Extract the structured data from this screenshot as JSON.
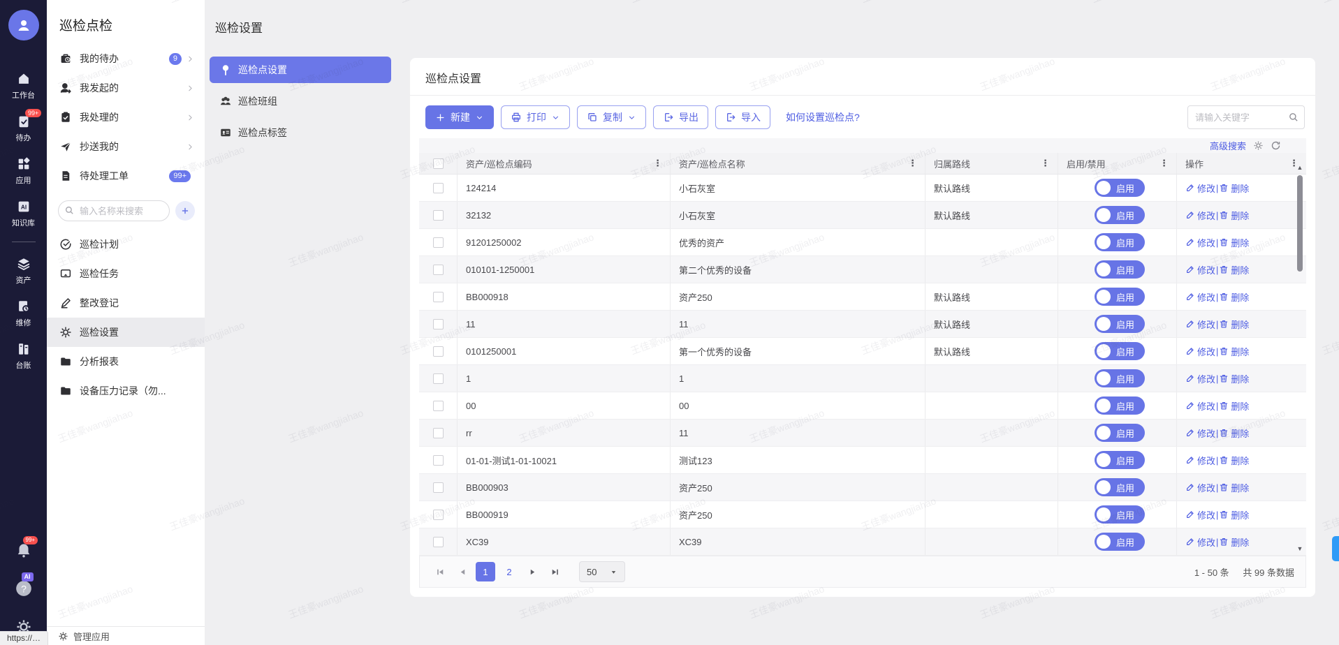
{
  "watermark": "王佳豪wangjiahao",
  "rail": {
    "items": [
      {
        "icon": "home",
        "label": "工作台"
      },
      {
        "icon": "tasks",
        "label": "待办",
        "badge": "99+"
      },
      {
        "icon": "grid",
        "label": "应用"
      },
      {
        "icon": "book",
        "label": "知识库"
      },
      {
        "divider": true
      },
      {
        "icon": "layers",
        "label": "资产"
      },
      {
        "icon": "repairbook",
        "label": "维修"
      },
      {
        "icon": "cabinet",
        "label": "台账"
      }
    ],
    "bell_badge": "99+",
    "ai_badge": "AI"
  },
  "sidebar": {
    "title": "巡检点检",
    "top_items": [
      {
        "icon": "briefcase",
        "label": "我的待办",
        "badge": "9",
        "chevron": true
      },
      {
        "icon": "useradd",
        "label": "我发起的",
        "chevron": true
      },
      {
        "icon": "clipcheck",
        "label": "我处理的",
        "chevron": true
      },
      {
        "icon": "send",
        "label": "抄送我的",
        "chevron": true
      },
      {
        "icon": "doc",
        "label": "待处理工单",
        "badge": "99+"
      }
    ],
    "search_placeholder": "输入名称来搜索",
    "menu_items": [
      {
        "icon": "checkcircle",
        "label": "巡检计划"
      },
      {
        "icon": "cast",
        "label": "巡检任务"
      },
      {
        "icon": "pen",
        "label": "整改登记"
      },
      {
        "icon": "gear",
        "label": "巡检设置",
        "active": true
      },
      {
        "icon": "folder",
        "label": "分析报表",
        "folder": true
      },
      {
        "icon": "folder",
        "label": "设备压力记录（勿...",
        "folder": true
      }
    ],
    "footer_label": "管理应用"
  },
  "settings": {
    "page_title": "巡检设置",
    "tabs": [
      {
        "icon": "pin",
        "label": "巡检点设置",
        "active": true
      },
      {
        "icon": "users",
        "label": "巡检班组"
      },
      {
        "icon": "idcard",
        "label": "巡检点标签"
      }
    ]
  },
  "panel": {
    "title": "巡检点设置",
    "buttons": [
      {
        "label": "新建",
        "icon": "plus",
        "variant": "primary",
        "chevron": true
      },
      {
        "label": "打印",
        "icon": "printer",
        "variant": "outline",
        "chevron": true
      },
      {
        "label": "复制",
        "icon": "copy",
        "variant": "outline",
        "chevron": true
      },
      {
        "label": "导出",
        "icon": "export",
        "variant": "outline",
        "chevron": false
      },
      {
        "label": "导入",
        "icon": "export",
        "variant": "outline",
        "chevron": false
      }
    ],
    "help_link": "如何设置巡检点?",
    "search_placeholder": "请输入关键字",
    "advanced_search": "高级搜索"
  },
  "table": {
    "columns": [
      "资产/巡检点编码",
      "资产/巡检点名称",
      "归属路线",
      "启用/禁用",
      "操作"
    ],
    "actions": {
      "edit": "修改",
      "sep": "|",
      "delete": "删除"
    },
    "status_on": "启用",
    "rows": [
      {
        "code": "124214",
        "name": "小石灰室",
        "route": "默认路线"
      },
      {
        "code": "32132",
        "name": "小石灰室",
        "route": "默认路线"
      },
      {
        "code": "91201250002",
        "name": "优秀的资产",
        "route": ""
      },
      {
        "code": "010101-1250001",
        "name": "第二个优秀的设备",
        "route": ""
      },
      {
        "code": "BB000918",
        "name": "资产250",
        "route": "默认路线"
      },
      {
        "code": "11",
        "name": "11",
        "route": "默认路线"
      },
      {
        "code": "0101250001",
        "name": "第一个优秀的设备",
        "route": "默认路线"
      },
      {
        "code": "1",
        "name": "1",
        "route": ""
      },
      {
        "code": "00",
        "name": "00",
        "route": ""
      },
      {
        "code": "rr",
        "name": "11",
        "route": ""
      },
      {
        "code": "01-01-测试1-01-10021",
        "name": "测试123",
        "route": ""
      },
      {
        "code": "BB000903",
        "name": "资产250",
        "route": ""
      },
      {
        "code": "BB000919",
        "name": "资产250",
        "route": ""
      },
      {
        "code": "XC39",
        "name": "XC39",
        "route": ""
      }
    ]
  },
  "pagination": {
    "pages": [
      "1",
      "2"
    ],
    "active_page": "1",
    "page_size": "50",
    "range": "1 - 50 条",
    "total": "共 99 条数据"
  },
  "status_bar": {
    "text": "https://…"
  }
}
